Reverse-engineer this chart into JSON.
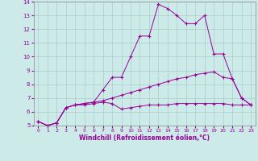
{
  "xlabel": "Windchill (Refroidissement éolien,°C)",
  "background_color": "#cceae7",
  "grid_color": "#aacccc",
  "line_color": "#990099",
  "xlim": [
    -0.5,
    23.5
  ],
  "ylim": [
    5,
    14
  ],
  "x_ticks": [
    0,
    1,
    2,
    3,
    4,
    5,
    6,
    7,
    8,
    9,
    10,
    11,
    12,
    13,
    14,
    15,
    16,
    17,
    18,
    19,
    20,
    21,
    22,
    23
  ],
  "y_ticks": [
    5,
    6,
    7,
    8,
    9,
    10,
    11,
    12,
    13,
    14
  ],
  "lines": [
    {
      "x": [
        0,
        1,
        2,
        3,
        4,
        5,
        6,
        7,
        8,
        9,
        10,
        11,
        12,
        13,
        14,
        15,
        16,
        17,
        18,
        19,
        20,
        21,
        22,
        23
      ],
      "y": [
        5.3,
        5.0,
        5.2,
        6.3,
        6.5,
        6.5,
        6.6,
        6.7,
        6.6,
        6.2,
        6.3,
        6.4,
        6.5,
        6.5,
        6.5,
        6.6,
        6.6,
        6.6,
        6.6,
        6.6,
        6.6,
        6.5,
        6.5,
        6.5
      ]
    },
    {
      "x": [
        0,
        1,
        2,
        3,
        4,
        5,
        6,
        7,
        8,
        9,
        10,
        11,
        12,
        13,
        14,
        15,
        16,
        17,
        18,
        19,
        20,
        21,
        22,
        23
      ],
      "y": [
        5.3,
        5.0,
        5.2,
        6.3,
        6.5,
        6.6,
        6.7,
        7.6,
        8.5,
        8.5,
        10.0,
        11.5,
        11.5,
        13.8,
        13.5,
        13.0,
        12.4,
        12.4,
        13.0,
        10.2,
        10.2,
        8.4,
        7.0,
        6.5
      ]
    },
    {
      "x": [
        0,
        1,
        2,
        3,
        4,
        5,
        6,
        7,
        8,
        9,
        10,
        11,
        12,
        13,
        14,
        15,
        16,
        17,
        18,
        19,
        20,
        21,
        22,
        23
      ],
      "y": [
        5.3,
        5.0,
        5.2,
        6.3,
        6.5,
        6.6,
        6.7,
        6.8,
        7.0,
        7.2,
        7.4,
        7.6,
        7.8,
        8.0,
        8.2,
        8.4,
        8.5,
        8.7,
        8.8,
        8.9,
        8.5,
        8.4,
        7.0,
        6.5
      ]
    }
  ]
}
